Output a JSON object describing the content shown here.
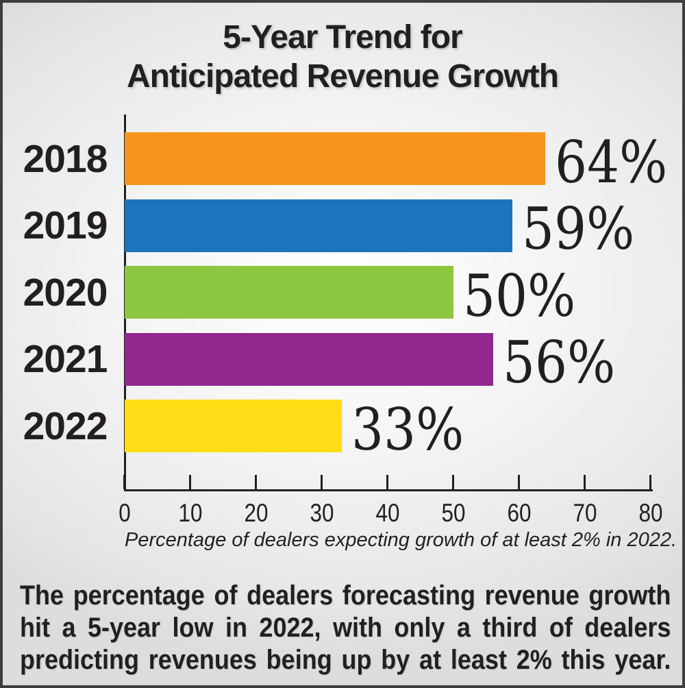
{
  "title": {
    "line1": "5-Year Trend for",
    "line2": "Anticipated Revenue Growth"
  },
  "chart_data": {
    "type": "bar",
    "orientation": "horizontal",
    "title": "5-Year Trend for Anticipated Revenue Growth",
    "categories": [
      "2018",
      "2019",
      "2020",
      "2021",
      "2022"
    ],
    "values": [
      64,
      59,
      50,
      56,
      33
    ],
    "value_labels": [
      "64%",
      "59%",
      "50%",
      "56%",
      "33%"
    ],
    "bar_colors": [
      "#F7941E",
      "#1C75BC",
      "#8DC63F",
      "#92278F",
      "#FFDE17"
    ],
    "xlim": [
      0,
      80
    ],
    "xticks": [
      0,
      10,
      20,
      30,
      40,
      50,
      60,
      70,
      80
    ],
    "xlabel": "Percentage of dealers expecting growth of at least 2% in 2022.",
    "ylabel": "",
    "grid": false,
    "legend": false
  },
  "footer": {
    "lines": [
      "The percentage of dealers forecasting revenue growth",
      "hit a 5-year low in 2022, with only a third of dealers",
      "predicting revenues being up by at least 2% this year."
    ],
    "text": "The percentage of dealers forecasting revenue growth hit a 5-year low in 2022, with only a third of dealers predicting revenues being up by at least 2% this year."
  },
  "colors": {
    "text": "#231f20",
    "axis": "#231f20",
    "frame_border": "#3e3e40"
  }
}
